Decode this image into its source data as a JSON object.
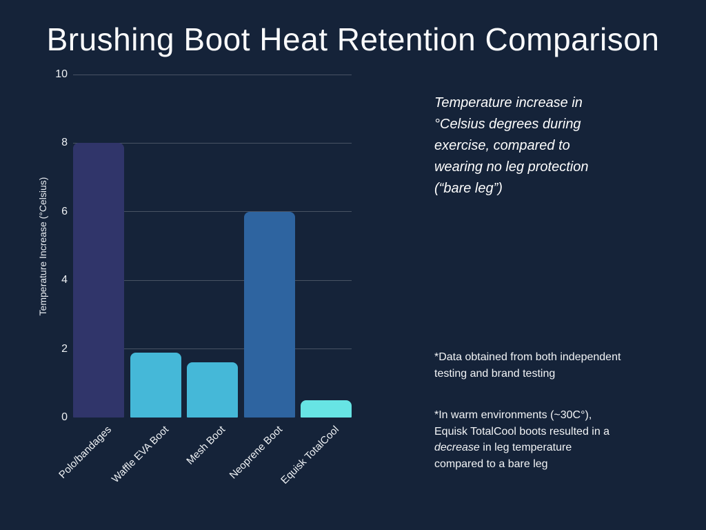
{
  "slide": {
    "background_color": "#152339",
    "text_color": "#ffffff"
  },
  "chart_data": {
    "type": "bar",
    "title": "Brushing Boot Heat Retention Comparison",
    "categories": [
      "Polo/bandages",
      "Waffle EVA Boot",
      "Mesh Boot",
      "Neoprene Boot",
      "Equisk TotalCool"
    ],
    "values": [
      8,
      1.9,
      1.6,
      6,
      0.5
    ],
    "bar_colors": [
      "#30356a",
      "#45b8d8",
      "#45b8d8",
      "#2e64a0",
      "#67e4e4"
    ],
    "xlabel": "",
    "ylabel": "Temperature Increase (°Celsius)",
    "ylim": [
      0,
      10
    ],
    "yticks": [
      0,
      2,
      4,
      6,
      8,
      10
    ],
    "grid": true,
    "gridline_color": "rgba(255,255,255,0.22)",
    "legend_position": "none"
  },
  "annotations": {
    "description": "Temperature increase in\n°Celsius degrees during\nexercise, compared to\nwearing no leg protection\n(“bare leg”)",
    "note1": "*Data obtained from both independent\ntesting and brand testing",
    "note2_pre": "*In warm environments (~30C°),\nEquisk TotalCool boots resulted in a\n",
    "note2_italic": "decrease",
    "note2_post": " in leg temperature\ncompared to a bare leg"
  }
}
